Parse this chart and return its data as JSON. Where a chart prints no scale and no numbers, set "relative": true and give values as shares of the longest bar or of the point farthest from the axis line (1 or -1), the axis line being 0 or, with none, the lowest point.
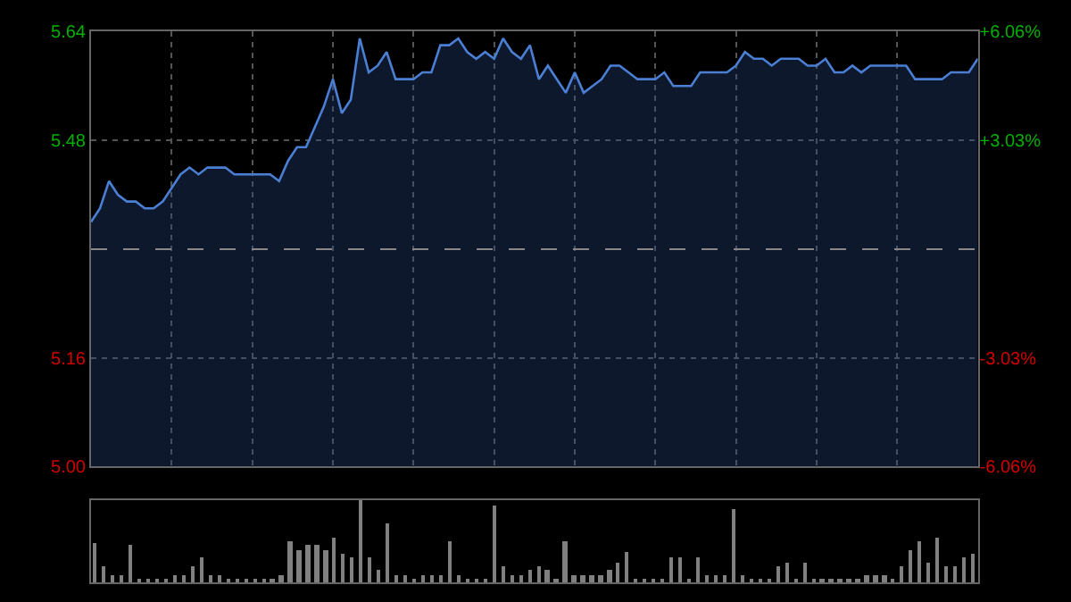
{
  "chart_data": [
    {
      "type": "area",
      "categories": [
        null,
        null,
        null,
        null,
        null,
        null,
        null,
        null,
        null,
        null,
        null,
        null,
        null,
        null,
        null,
        null,
        null,
        null,
        null,
        null,
        null,
        null,
        null,
        null,
        null,
        null,
        null,
        null,
        null,
        null,
        null,
        null,
        null,
        null,
        null,
        null,
        null,
        null,
        null,
        null,
        null,
        null,
        null,
        null,
        null,
        null,
        null,
        null,
        null,
        null,
        null,
        null,
        null,
        null,
        null,
        null,
        null,
        null,
        null,
        null,
        null,
        null,
        null,
        null,
        null,
        null,
        null,
        null,
        null,
        null,
        null,
        null,
        null,
        null,
        null,
        null,
        null,
        null,
        null,
        null,
        null,
        null,
        null,
        null,
        null,
        null,
        null,
        null,
        null,
        null,
        null,
        null,
        null,
        null,
        null,
        null,
        null,
        null,
        null,
        null
      ],
      "series": [
        {
          "color": "#4a7fd4",
          "values": [
            5.36,
            5.38,
            5.42,
            5.4,
            5.39,
            5.39,
            5.38,
            5.38,
            5.39,
            5.41,
            5.43,
            5.44,
            5.43,
            5.44,
            5.44,
            5.44,
            5.43,
            5.43,
            5.43,
            5.43,
            5.43,
            5.42,
            5.45,
            5.47,
            5.47,
            5.5,
            5.53,
            5.57,
            5.52,
            5.54,
            5.63,
            5.58,
            5.59,
            5.61,
            5.57,
            5.57,
            5.57,
            5.58,
            5.58,
            5.62,
            5.62,
            5.63,
            5.61,
            5.6,
            5.61,
            5.6,
            5.63,
            5.61,
            5.6,
            5.62,
            5.57,
            5.59,
            5.57,
            5.55,
            5.58,
            5.55,
            5.56,
            5.57,
            5.59,
            5.59,
            5.58,
            5.57,
            5.57,
            5.57,
            5.58,
            5.56,
            5.56,
            5.56,
            5.58,
            5.58,
            5.58,
            5.58,
            5.59,
            5.61,
            5.6,
            5.6,
            5.59,
            5.6,
            5.6,
            5.6,
            5.59,
            5.59,
            5.6,
            5.58,
            5.58,
            5.59,
            5.58,
            5.59,
            5.59,
            5.59,
            5.59,
            5.59,
            5.57,
            5.57,
            5.57,
            5.57,
            5.58,
            5.58,
            5.58,
            5.6
          ]
        }
      ],
      "ylim": [
        5.0,
        5.64
      ],
      "yticks": [
        {
          "value": 5.0,
          "label": "5.00"
        },
        {
          "value": 5.16,
          "label": "5.16"
        },
        {
          "value": 5.48,
          "label": "5.48"
        },
        {
          "value": 5.64,
          "label": "5.64"
        }
      ],
      "y2lim": [
        -6.06,
        6.06
      ],
      "y2ticks": [
        {
          "value": -6.06,
          "label": "-6.06%"
        },
        {
          "value": -3.03,
          "label": "-3.03%"
        },
        {
          "value": 3.03,
          "label": "+3.03%"
        },
        {
          "value": 6.06,
          "label": "+6.06%"
        }
      ],
      "ref_lines": [
        {
          "axis": "y",
          "value": 5.32,
          "line_style": "dashed"
        }
      ],
      "grid": true,
      "marker": "none",
      "line_style": "solid"
    },
    {
      "type": "bar",
      "relative": true,
      "color": "#808080",
      "categories": [
        null,
        null,
        null,
        null,
        null,
        null,
        null,
        null,
        null,
        null,
        null,
        null,
        null,
        null,
        null,
        null,
        null,
        null,
        null,
        null,
        null,
        null,
        null,
        null,
        null,
        null,
        null,
        null,
        null,
        null,
        null,
        null,
        null,
        null,
        null,
        null,
        null,
        null,
        null,
        null,
        null,
        null,
        null,
        null,
        null,
        null,
        null,
        null,
        null,
        null,
        null,
        null,
        null,
        null,
        null,
        null,
        null,
        null,
        null,
        null,
        null,
        null,
        null,
        null,
        null,
        null,
        null,
        null,
        null,
        null,
        null,
        null,
        null,
        null,
        null,
        null,
        null,
        null,
        null,
        null,
        null,
        null,
        null,
        null,
        null,
        null,
        null,
        null,
        null,
        null,
        null,
        null,
        null,
        null,
        null,
        null,
        null,
        null,
        null,
        null
      ],
      "values": [
        0.48,
        0.2,
        0.1,
        0.1,
        0.45,
        0.05,
        0.05,
        0.05,
        0.05,
        0.1,
        0.1,
        0.2,
        0.3,
        0.1,
        0.1,
        0.05,
        0.05,
        0.05,
        0.05,
        0.05,
        0.05,
        0.1,
        0.5,
        0.4,
        0.45,
        0.45,
        0.4,
        0.55,
        0.35,
        0.3,
        1.0,
        0.3,
        0.15,
        0.72,
        0.1,
        0.1,
        0.05,
        0.1,
        0.1,
        0.1,
        0.5,
        0.1,
        0.05,
        0.05,
        0.05,
        0.93,
        0.2,
        0.1,
        0.1,
        0.15,
        0.2,
        0.15,
        0.05,
        0.5,
        0.1,
        0.1,
        0.1,
        0.1,
        0.15,
        0.25,
        0.38,
        0.05,
        0.05,
        0.05,
        0.05,
        0.3,
        0.3,
        0.05,
        0.3,
        0.1,
        0.1,
        0.1,
        0.9,
        0.1,
        0.05,
        0.05,
        0.05,
        0.2,
        0.25,
        0.05,
        0.25,
        0.05,
        0.05,
        0.05,
        0.05,
        0.05,
        0.05,
        0.1,
        0.1,
        0.1,
        0.05,
        0.2,
        0.4,
        0.5,
        0.25,
        0.55,
        0.2,
        0.2,
        0.3,
        0.35
      ],
      "grid": false
    }
  ]
}
